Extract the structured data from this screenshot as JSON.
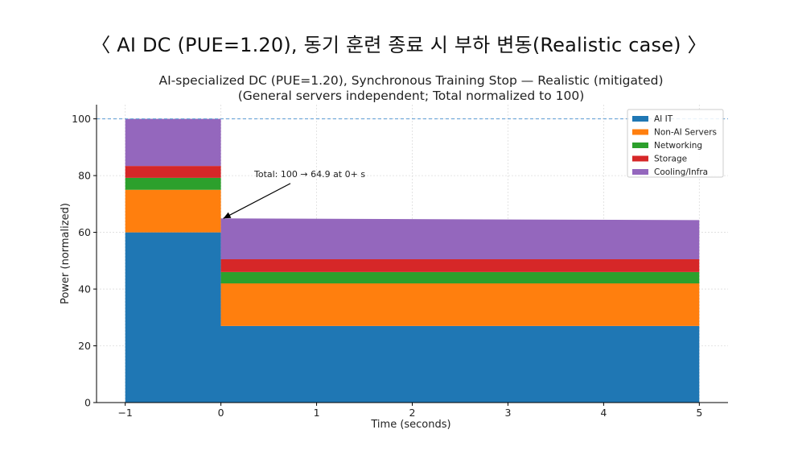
{
  "slide_title": "〈 AI DC (PUE=1.20), 동기 훈련 종료 시 부하 변동(Realistic case) 〉",
  "chart_data": {
    "type": "area",
    "stacked": true,
    "step": true,
    "title": "AI-specialized DC (PUE=1.20), Synchronous Training Stop — Realistic (mitigated)",
    "subtitle": "(General servers independent; Total normalized to 100)",
    "xlabel": "Time (seconds)",
    "ylabel": "Power (normalized)",
    "xlim": [
      -1.0,
      5.0
    ],
    "ylim": [
      0,
      105
    ],
    "xticks": [
      -1,
      0,
      1,
      2,
      3,
      4,
      5
    ],
    "xtick_labels": [
      "−1",
      "0",
      "1",
      "2",
      "3",
      "4",
      "5"
    ],
    "yticks": [
      0,
      20,
      40,
      60,
      80,
      100
    ],
    "grid": true,
    "legend_position": "top-right",
    "reference_line": {
      "y": 100,
      "style": "dashed",
      "color": "#5a9bd4"
    },
    "x": [
      -1.0,
      0.0,
      0.0,
      5.0
    ],
    "series": [
      {
        "name": "AI IT",
        "color": "#1f77b4",
        "values": [
          60.0,
          60.0,
          27.0,
          27.0
        ]
      },
      {
        "name": "Non-AI Servers",
        "color": "#ff7f0e",
        "values": [
          15.0,
          15.0,
          15.0,
          15.0
        ]
      },
      {
        "name": "Networking",
        "color": "#2ca02c",
        "values": [
          4.2,
          4.2,
          4.0,
          4.0
        ]
      },
      {
        "name": "Storage",
        "color": "#d62728",
        "values": [
          4.2,
          4.2,
          4.5,
          4.5
        ]
      },
      {
        "name": "Cooling/Infra",
        "color": "#9467bd",
        "values": [
          16.6,
          16.6,
          14.4,
          13.8
        ]
      }
    ],
    "annotation": {
      "text": "Total: 100 → 64.9 at 0+ s",
      "x": 0.0,
      "y": 64.9,
      "text_x": 0.6,
      "text_y": 79.5
    }
  }
}
